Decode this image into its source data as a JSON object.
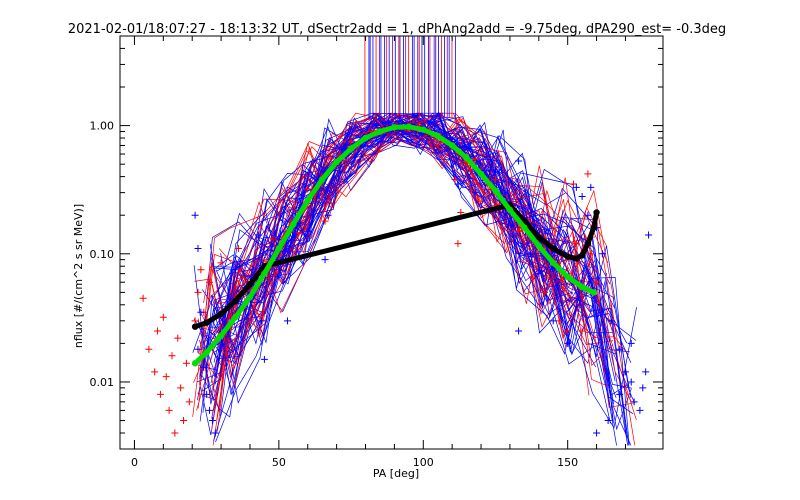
{
  "chart_data": {
    "type": "scatter",
    "title": "2021-02-01/18:07:27 - 18:13:32 UT, dSectr2add = 1, dPhAng2add = -9.75deg, dPA290_est=  -0.3deg",
    "xlabel": "PA [deg]",
    "ylabel": "nflux [#/(cm^2 s sr MeV)]",
    "xlim": [
      -5,
      183
    ],
    "ylim_log": [
      0.003,
      5.0
    ],
    "y_scale": "log",
    "x_ticks": [
      0,
      50,
      100,
      150
    ],
    "x_tick_labels": [
      "0",
      "50",
      "100",
      "150"
    ],
    "y_ticks": [
      0.01,
      0.1,
      1.0
    ],
    "y_tick_labels": [
      "0.01",
      "0.10",
      "1.00"
    ],
    "colors": {
      "red": "#ff0000",
      "blue": "#0000ff",
      "green": "#00dd00",
      "black": "#000000",
      "purple": "#8000a0"
    },
    "series": [
      {
        "color": "red",
        "marker": "plus",
        "points": [
          [
            3,
            0.045
          ],
          [
            5,
            0.018
          ],
          [
            7,
            0.012
          ],
          [
            8,
            0.025
          ],
          [
            9,
            0.008
          ],
          [
            10,
            0.032
          ],
          [
            11,
            0.011
          ],
          [
            12,
            0.006
          ],
          [
            13,
            0.016
          ],
          [
            14,
            0.004
          ],
          [
            15,
            0.022
          ],
          [
            16,
            0.009
          ],
          [
            17,
            0.005
          ],
          [
            18,
            0.014
          ],
          [
            19,
            0.007
          ],
          [
            21,
            0.03
          ],
          [
            22,
            0.05
          ],
          [
            23,
            0.075
          ],
          [
            24,
            0.035
          ],
          [
            26,
            0.06
          ],
          [
            30,
            0.085
          ],
          [
            36,
            0.11
          ],
          [
            43,
            0.06
          ],
          [
            48,
            0.13
          ],
          [
            60,
            0.32
          ],
          [
            66,
            0.18
          ],
          [
            68,
            0.55
          ],
          [
            75,
            0.75
          ],
          [
            82,
            0.9
          ],
          [
            90,
            0.95
          ],
          [
            98,
            0.92
          ],
          [
            105,
            0.8
          ],
          [
            111,
            0.38
          ],
          [
            112,
            0.12
          ],
          [
            113,
            0.21
          ],
          [
            118,
            0.55
          ],
          [
            125,
            0.38
          ],
          [
            133,
            0.15
          ],
          [
            138,
            0.065
          ],
          [
            142,
            0.05
          ],
          [
            147,
            0.03
          ],
          [
            150,
            0.025
          ],
          [
            152,
            0.35
          ],
          [
            153,
            0.12
          ],
          [
            155,
            0.025
          ],
          [
            157,
            0.42
          ],
          [
            158,
            0.1
          ],
          [
            160,
            0.06
          ]
        ]
      },
      {
        "color": "blue",
        "marker": "plus",
        "points": [
          [
            21,
            0.2
          ],
          [
            22,
            0.11
          ],
          [
            22,
            0.018
          ],
          [
            23,
            0.035
          ],
          [
            24,
            0.013
          ],
          [
            25,
            0.008
          ],
          [
            26,
            0.006
          ],
          [
            27,
            0.005
          ],
          [
            28,
            0.004
          ],
          [
            43,
            0.14
          ],
          [
            44,
            0.03
          ],
          [
            45,
            0.015
          ],
          [
            53,
            0.03
          ],
          [
            60,
            0.15
          ],
          [
            66,
            0.44
          ],
          [
            66,
            0.09
          ],
          [
            67,
            0.2
          ],
          [
            74,
            0.6
          ],
          [
            84,
            1.0
          ],
          [
            88,
            1.05
          ],
          [
            96,
            1.02
          ],
          [
            104,
            0.92
          ],
          [
            108,
            0.8
          ],
          [
            110,
            0.75
          ],
          [
            112,
            0.35
          ],
          [
            118,
            0.3
          ],
          [
            125,
            0.45
          ],
          [
            133,
            0.53
          ],
          [
            133,
            0.025
          ],
          [
            137,
            0.1
          ],
          [
            140,
            0.07
          ],
          [
            145,
            0.03
          ],
          [
            150,
            0.02
          ],
          [
            153,
            0.33
          ],
          [
            155,
            0.28
          ],
          [
            157,
            0.2
          ],
          [
            158,
            0.33
          ],
          [
            160,
            0.16
          ],
          [
            162,
            0.1
          ],
          [
            165,
            0.03
          ],
          [
            168,
            0.018
          ],
          [
            170,
            0.012
          ],
          [
            172,
            0.01
          ],
          [
            173,
            0.007
          ],
          [
            175,
            0.006
          ],
          [
            176,
            0.009
          ],
          [
            177,
            0.012
          ],
          [
            178,
            0.14
          ],
          [
            172,
            0.02
          ],
          [
            168,
            0.008
          ],
          [
            164,
            0.005
          ],
          [
            160,
            0.004
          ]
        ]
      },
      {
        "name": "",
        "color": "green",
        "marker": "dot",
        "x": [
          21,
          25,
          30,
          35,
          40,
          45,
          50,
          55,
          60,
          65,
          70,
          75,
          80,
          85,
          90,
          95,
          100,
          105,
          110,
          115,
          120,
          125,
          130,
          135,
          140,
          145,
          150,
          155,
          159
        ],
        "y": [
          0.014,
          0.017,
          0.023,
          0.032,
          0.046,
          0.07,
          0.11,
          0.17,
          0.26,
          0.38,
          0.52,
          0.66,
          0.8,
          0.9,
          0.97,
          0.98,
          0.93,
          0.83,
          0.7,
          0.56,
          0.42,
          0.31,
          0.22,
          0.16,
          0.115,
          0.085,
          0.066,
          0.055,
          0.05
        ]
      },
      {
        "name": "",
        "color": "black",
        "marker": "dot",
        "x": [
          21,
          25,
          30,
          35,
          40,
          45,
          130,
          135,
          140,
          145,
          150,
          153,
          155,
          157,
          159,
          160
        ],
        "y": [
          0.027,
          0.029,
          0.034,
          0.043,
          0.058,
          0.08,
          0.24,
          0.18,
          0.135,
          0.11,
          0.095,
          0.092,
          0.097,
          0.12,
          0.16,
          0.21
        ]
      }
    ],
    "vertical_lines_x_range": [
      80,
      111
    ],
    "vertical_lines_bottom_y": 1.15
  }
}
